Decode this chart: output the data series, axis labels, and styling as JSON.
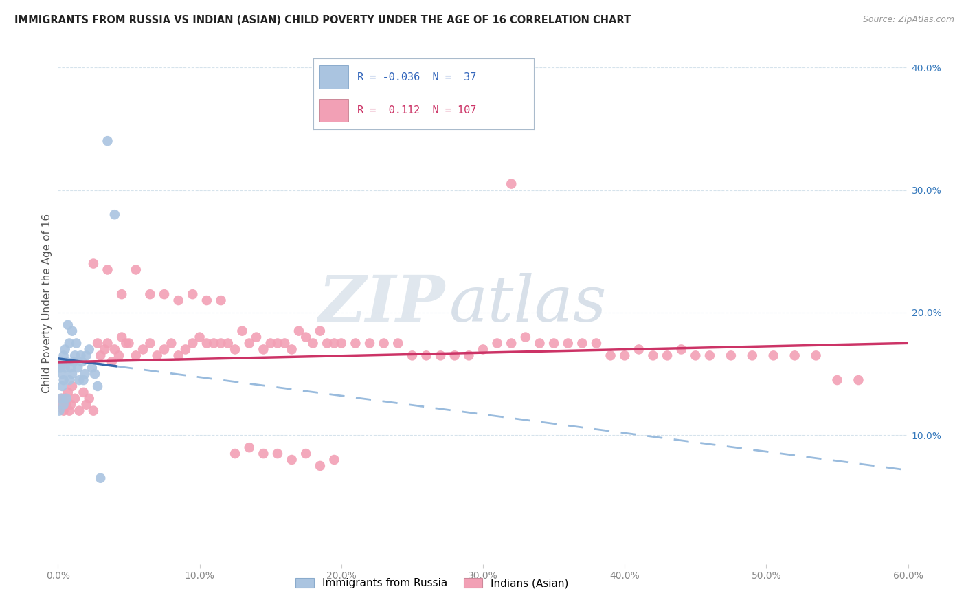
{
  "title": "IMMIGRANTS FROM RUSSIA VS INDIAN (ASIAN) CHILD POVERTY UNDER THE AGE OF 16 CORRELATION CHART",
  "source": "Source: ZipAtlas.com",
  "ylabel": "Child Poverty Under the Age of 16",
  "russia_color": "#aac4e0",
  "india_color": "#f2a0b5",
  "russia_R": -0.036,
  "russia_N": 37,
  "india_R": 0.112,
  "india_N": 107,
  "russia_line_color": "#3366aa",
  "india_line_color": "#cc3366",
  "trendline_ext_color": "#99bbdd",
  "watermark_zip": "ZIP",
  "watermark_atlas": "atlas",
  "legend_label_russia": "Immigrants from Russia",
  "legend_label_india": "Indians (Asian)",
  "xlim": [
    0.0,
    0.6
  ],
  "ylim": [
    -0.005,
    0.42
  ],
  "russia_scatter_x": [
    0.001,
    0.001,
    0.002,
    0.002,
    0.003,
    0.003,
    0.003,
    0.004,
    0.004,
    0.004,
    0.005,
    0.005,
    0.006,
    0.006,
    0.007,
    0.008,
    0.008,
    0.009,
    0.01,
    0.01,
    0.011,
    0.012,
    0.013,
    0.014,
    0.015,
    0.016,
    0.017,
    0.018,
    0.019,
    0.02,
    0.022,
    0.024,
    0.026,
    0.028,
    0.03,
    0.035,
    0.04
  ],
  "russia_scatter_y": [
    0.12,
    0.155,
    0.13,
    0.155,
    0.14,
    0.15,
    0.16,
    0.125,
    0.145,
    0.165,
    0.155,
    0.17,
    0.13,
    0.16,
    0.19,
    0.145,
    0.175,
    0.155,
    0.15,
    0.185,
    0.16,
    0.165,
    0.175,
    0.155,
    0.145,
    0.165,
    0.16,
    0.145,
    0.15,
    0.165,
    0.17,
    0.155,
    0.15,
    0.14,
    0.065,
    0.34,
    0.28
  ],
  "india_scatter_x": [
    0.002,
    0.003,
    0.004,
    0.005,
    0.006,
    0.007,
    0.008,
    0.009,
    0.01,
    0.012,
    0.015,
    0.018,
    0.02,
    0.022,
    0.025,
    0.028,
    0.03,
    0.033,
    0.035,
    0.038,
    0.04,
    0.043,
    0.045,
    0.048,
    0.05,
    0.055,
    0.06,
    0.065,
    0.07,
    0.075,
    0.08,
    0.085,
    0.09,
    0.095,
    0.1,
    0.105,
    0.11,
    0.115,
    0.12,
    0.125,
    0.13,
    0.135,
    0.14,
    0.145,
    0.15,
    0.155,
    0.16,
    0.165,
    0.17,
    0.175,
    0.18,
    0.185,
    0.19,
    0.195,
    0.2,
    0.21,
    0.22,
    0.23,
    0.24,
    0.25,
    0.26,
    0.27,
    0.28,
    0.29,
    0.3,
    0.31,
    0.32,
    0.33,
    0.34,
    0.35,
    0.36,
    0.37,
    0.38,
    0.39,
    0.4,
    0.41,
    0.42,
    0.43,
    0.44,
    0.45,
    0.46,
    0.475,
    0.49,
    0.505,
    0.52,
    0.535,
    0.55,
    0.565,
    0.025,
    0.035,
    0.045,
    0.055,
    0.065,
    0.075,
    0.085,
    0.095,
    0.105,
    0.115,
    0.125,
    0.135,
    0.145,
    0.155,
    0.165,
    0.175,
    0.185,
    0.195,
    0.32
  ],
  "india_scatter_y": [
    0.125,
    0.13,
    0.12,
    0.13,
    0.125,
    0.135,
    0.12,
    0.125,
    0.14,
    0.13,
    0.12,
    0.135,
    0.125,
    0.13,
    0.12,
    0.175,
    0.165,
    0.17,
    0.175,
    0.16,
    0.17,
    0.165,
    0.18,
    0.175,
    0.175,
    0.165,
    0.17,
    0.175,
    0.165,
    0.17,
    0.175,
    0.165,
    0.17,
    0.175,
    0.18,
    0.175,
    0.175,
    0.175,
    0.175,
    0.17,
    0.185,
    0.175,
    0.18,
    0.17,
    0.175,
    0.175,
    0.175,
    0.17,
    0.185,
    0.18,
    0.175,
    0.185,
    0.175,
    0.175,
    0.175,
    0.175,
    0.175,
    0.175,
    0.175,
    0.165,
    0.165,
    0.165,
    0.165,
    0.165,
    0.17,
    0.175,
    0.175,
    0.18,
    0.175,
    0.175,
    0.175,
    0.175,
    0.175,
    0.165,
    0.165,
    0.17,
    0.165,
    0.165,
    0.17,
    0.165,
    0.165,
    0.165,
    0.165,
    0.165,
    0.165,
    0.165,
    0.145,
    0.145,
    0.24,
    0.235,
    0.215,
    0.235,
    0.215,
    0.215,
    0.21,
    0.215,
    0.21,
    0.21,
    0.085,
    0.09,
    0.085,
    0.085,
    0.08,
    0.085,
    0.075,
    0.08,
    0.305
  ]
}
